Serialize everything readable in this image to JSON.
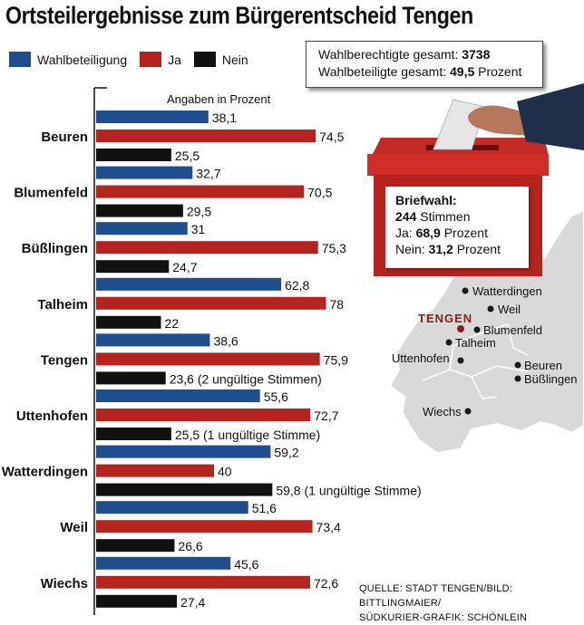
{
  "title": "Ortsteilergebnisse zum Bürgerentscheid Tengen",
  "legend": [
    {
      "label": "Wahlbeteiligung",
      "color": "#1f4e8c"
    },
    {
      "label": "Ja",
      "color": "#b5231f"
    },
    {
      "label": "Nein",
      "color": "#111111"
    }
  ],
  "summary": {
    "line1_label": "Wahlberechtigte gesamt:",
    "line1_value": "3738",
    "line2_label": "Wahlbeteiligte gesamt:",
    "line2_value": "49,5",
    "line2_unit": "Prozent"
  },
  "briefwahl": {
    "heading": "Briefwahl:",
    "line1_value": "244",
    "line1_text": "Stimmen",
    "line2_label": "Ja:",
    "line2_value": "68,9",
    "line2_text": "Prozent",
    "line3_label": "Nein:",
    "line3_value": "31,2",
    "line3_text": "Prozent"
  },
  "map": {
    "highlight": "TENGEN",
    "places": [
      "Watterdingen",
      "Weil",
      "Blumenfeld",
      "Talheim",
      "Uttenhofen",
      "Beuren",
      "Büßlingen",
      "Wiechs"
    ]
  },
  "source": {
    "line1": "QUELLE: STADT TENGEN/BILD: BITTLINGMAIER/",
    "line2": "SÜDKURIER-GRAFIK: SCHÖNLEIN"
  },
  "chart_data": {
    "type": "bar",
    "orientation": "horizontal",
    "unit_note": "Angaben in Prozent",
    "categories": [
      "Beuren",
      "Blumenfeld",
      "Büßlingen",
      "Talheim",
      "Tengen",
      "Uttenhofen",
      "Watterdingen",
      "Weil",
      "Wiechs"
    ],
    "series": [
      {
        "name": "Wahlbeteiligung",
        "color": "#1f4e8c",
        "values": [
          38.1,
          32.7,
          31,
          62.8,
          38.6,
          55.6,
          59.2,
          51.6,
          45.6
        ],
        "labels": [
          "38,1",
          "32,7",
          "31",
          "62,8",
          "38,6",
          "55,6",
          "59,2",
          "51,6",
          "45,6"
        ]
      },
      {
        "name": "Ja",
        "color": "#b5231f",
        "values": [
          74.5,
          70.5,
          75.3,
          78,
          75.9,
          72.7,
          40,
          73.4,
          72.6
        ],
        "labels": [
          "74,5",
          "70,5",
          "75,3",
          "78",
          "75,9",
          "72,7",
          "40",
          "73,4",
          "72,6"
        ]
      },
      {
        "name": "Nein",
        "color": "#111111",
        "values": [
          25.5,
          29.5,
          24.7,
          22,
          23.6,
          25.5,
          59.8,
          26.6,
          27.4
        ],
        "labels": [
          "25,5",
          "29,5",
          "24,7",
          "22",
          "23,6 (2 ungültige Stimmen)",
          "25,5 (1 ungültige Stimme)",
          "59,8 (1 ungültige Stimme)",
          "26,6",
          "27,4"
        ]
      }
    ]
  }
}
